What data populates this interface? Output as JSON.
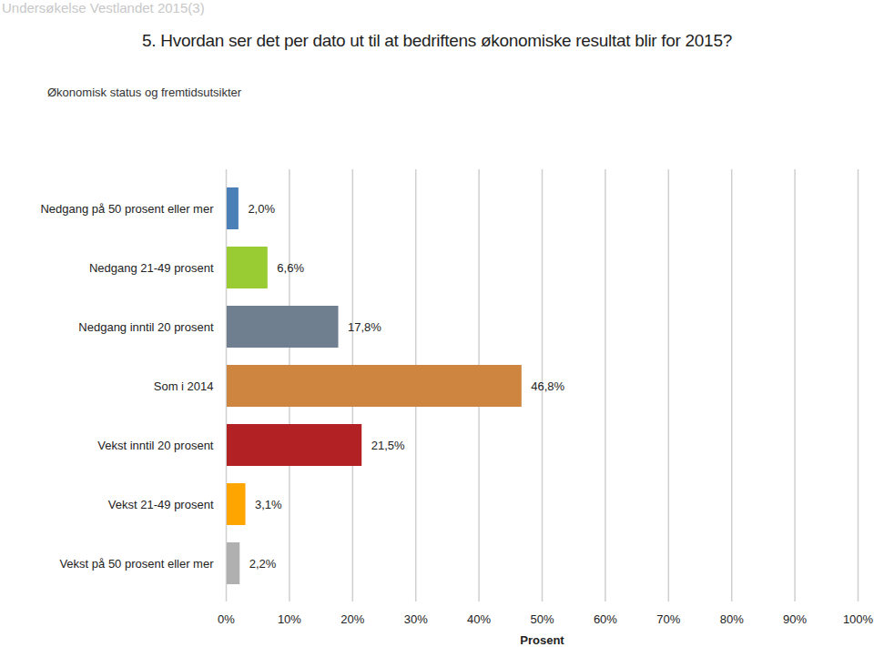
{
  "chart_data": {
    "type": "bar",
    "orientation": "horizontal",
    "annotation": "Undersøkelse Vestlandet 2015(3)",
    "title": "5. Hvordan ser det per dato ut til at bedriftens økonomiske resultat blir for 2015?",
    "subtitle": "Økonomisk status og fremtidsutsikter",
    "xlabel": "Prosent",
    "categories": [
      "Nedgang på 50 prosent eller mer",
      "Nedgang 21-49 prosent",
      "Nedgang inntil 20 prosent",
      "Som i 2014",
      "Vekst inntil 20 prosent",
      "Vekst 21-49 prosent",
      "Vekst på 50 prosent eller mer"
    ],
    "values": [
      2.0,
      6.6,
      17.8,
      46.8,
      21.5,
      3.1,
      2.2
    ],
    "value_labels": [
      "2,0%",
      "6,6%",
      "17,8%",
      "46,8%",
      "21,5%",
      "3,1%",
      "2,2%"
    ],
    "colors": [
      "#4a7fb8",
      "#99cc33",
      "#6f7f8f",
      "#cd853f",
      "#b22225",
      "#ffa500",
      "#b0b0b0"
    ],
    "xlim": [
      0,
      100
    ],
    "xticks": [
      {
        "value": 0,
        "label": "0%"
      },
      {
        "value": 10,
        "label": "10%"
      },
      {
        "value": 20,
        "label": "20%"
      },
      {
        "value": 30,
        "label": "30%"
      },
      {
        "value": 40,
        "label": "40%"
      },
      {
        "value": 50,
        "label": "50%"
      },
      {
        "value": 60,
        "label": "60%"
      },
      {
        "value": 70,
        "label": "70%"
      },
      {
        "value": 80,
        "label": "80%"
      },
      {
        "value": 90,
        "label": "90%"
      },
      {
        "value": 100,
        "label": "100%"
      }
    ],
    "grid": true,
    "data_labels": true
  }
}
